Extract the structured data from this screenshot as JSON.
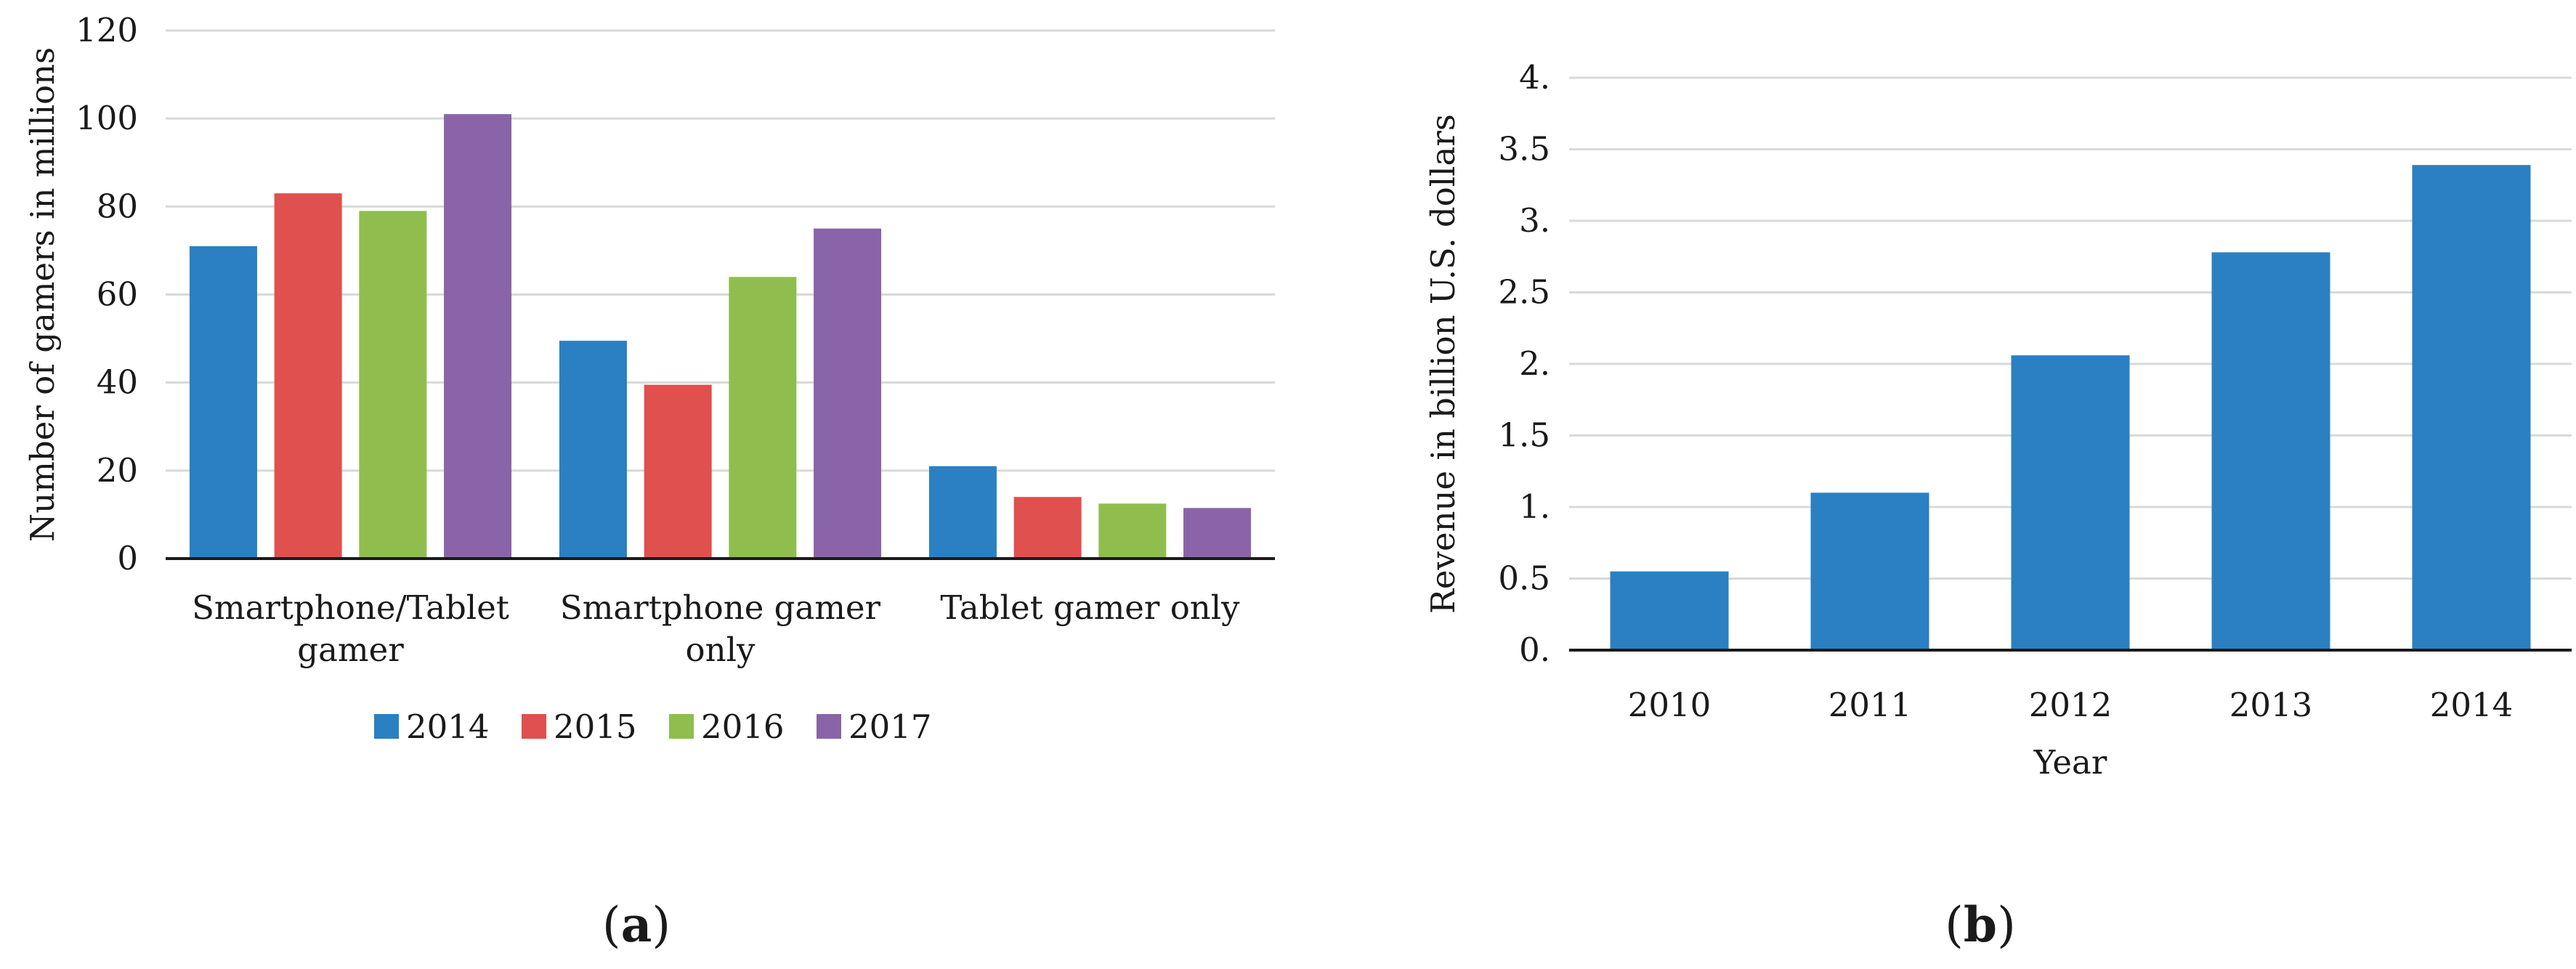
{
  "chart_data": [
    {
      "type": "bar",
      "panel_label": "a",
      "categories": [
        [
          "Smartphone/Tablet",
          "gamer"
        ],
        [
          "Smartphone gamer",
          "only"
        ],
        [
          "Tablet gamer only"
        ]
      ],
      "series": [
        {
          "name": "2014",
          "color": "#2a80c2",
          "values": [
            71,
            49.5,
            21
          ]
        },
        {
          "name": "2015",
          "color": "#e0504e",
          "values": [
            83,
            39.5,
            14
          ]
        },
        {
          "name": "2016",
          "color": "#8fbe4f",
          "values": [
            79,
            64,
            12.5
          ]
        },
        {
          "name": "2017",
          "color": "#8a64a8",
          "values": [
            101,
            75,
            11.5
          ]
        }
      ],
      "ylabel": "Number of gamers in millions",
      "ylim": [
        0,
        120
      ],
      "yticks": [
        "0",
        "20",
        "40",
        "60",
        "80",
        "100",
        "120"
      ],
      "legend_position": "bottom",
      "grid": true
    },
    {
      "type": "bar",
      "panel_label": "b",
      "categories": [
        "2010",
        "2011",
        "2012",
        "2013",
        "2014"
      ],
      "series": [
        {
          "name": "Revenue",
          "color": "#2a80c2",
          "values": [
            0.55,
            1.1,
            2.06,
            2.78,
            3.39
          ]
        }
      ],
      "xlabel": "Year",
      "ylabel": "Revenue in billion U.S. dollars",
      "ylim": [
        0,
        4
      ],
      "yticks": [
        "0.",
        "0.5",
        "1.",
        "1.5",
        "2.",
        "2.5",
        "3.",
        "3.5",
        "4."
      ],
      "grid": true
    }
  ]
}
